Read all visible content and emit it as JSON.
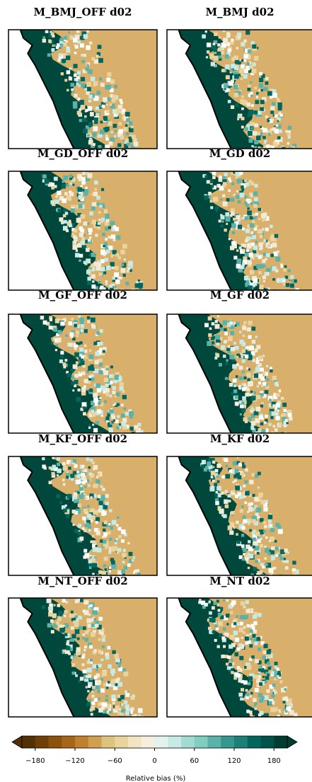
{
  "panels": [
    {
      "title": "M_BMJ_OFF d02"
    },
    {
      "title": "M_BMJ d02"
    },
    {
      "title": "M_GD_OFF d02"
    },
    {
      "title": "M_GD d02"
    },
    {
      "title": "M_GF_OFF d02"
    },
    {
      "title": "M_GF d02"
    },
    {
      "title": "M_KF_OFF d02"
    },
    {
      "title": "M_KF d02"
    },
    {
      "title": "M_NT_OFF d02"
    },
    {
      "title": "M_NT d02"
    }
  ],
  "colorbar": {
    "label": "Relative bias (%)",
    "xlim": [
      -200,
      200
    ],
    "xticks": [
      {
        "value": -180,
        "label": "−180"
      },
      {
        "value": -120,
        "label": "−120"
      },
      {
        "value": -60,
        "label": "−60"
      },
      0,
      60,
      120,
      180
    ],
    "colors": [
      "#543005",
      "#6f3f08",
      "#8c510a",
      "#a6661a",
      "#bf812d",
      "#d0a050",
      "#dfc27d",
      "#e9d39e",
      "#f2e4c0",
      "#f6efdf",
      "#e3f2ef",
      "#c7eae5",
      "#a3dbd2",
      "#80cdc1",
      "#5ab2a8",
      "#35978f",
      "#1d7f77",
      "#01665e",
      "#015248",
      "#003c30"
    ]
  }
}
